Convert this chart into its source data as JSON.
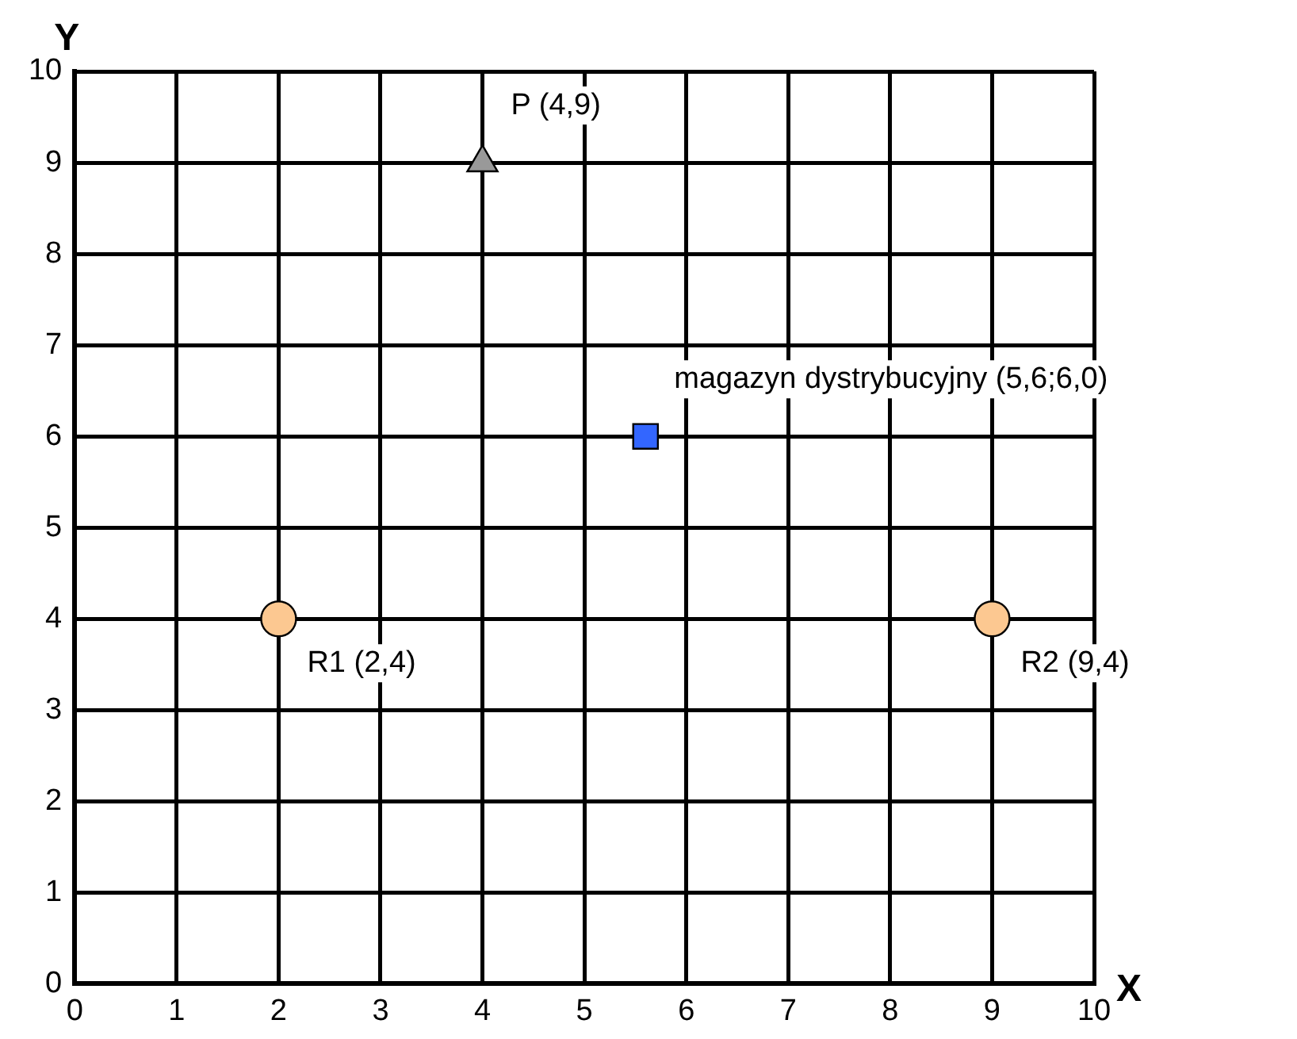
{
  "chart_data": {
    "type": "scatter",
    "xlabel": "X",
    "ylabel": "Y",
    "xlim": [
      0,
      10
    ],
    "ylim": [
      0,
      10
    ],
    "xticks": [
      0,
      1,
      2,
      3,
      4,
      5,
      6,
      7,
      8,
      9,
      10
    ],
    "yticks": [
      0,
      1,
      2,
      3,
      4,
      5,
      6,
      7,
      8,
      9,
      10
    ],
    "grid": true,
    "legend": false,
    "series": [
      {
        "x": [
          4
        ],
        "values": [
          9
        ],
        "color": "#999999",
        "marker": "triangle"
      },
      {
        "x": [
          5.6
        ],
        "values": [
          6.0
        ],
        "color": "#3366ff",
        "marker": "square"
      },
      {
        "x": [
          2,
          9
        ],
        "values": [
          4,
          4
        ],
        "color": "#fcc891",
        "marker": "circle"
      }
    ],
    "annotations": [
      {
        "text": "P (4,9)",
        "x": 4,
        "y": 9
      },
      {
        "text": "magazyn dystrybucyjny (5,6;6,0)",
        "x": 5.6,
        "y": 6.0
      },
      {
        "text": "R1 (2,4)",
        "x": 2,
        "y": 4
      },
      {
        "text": "R2 (9,4)",
        "x": 9,
        "y": 4
      }
    ]
  }
}
